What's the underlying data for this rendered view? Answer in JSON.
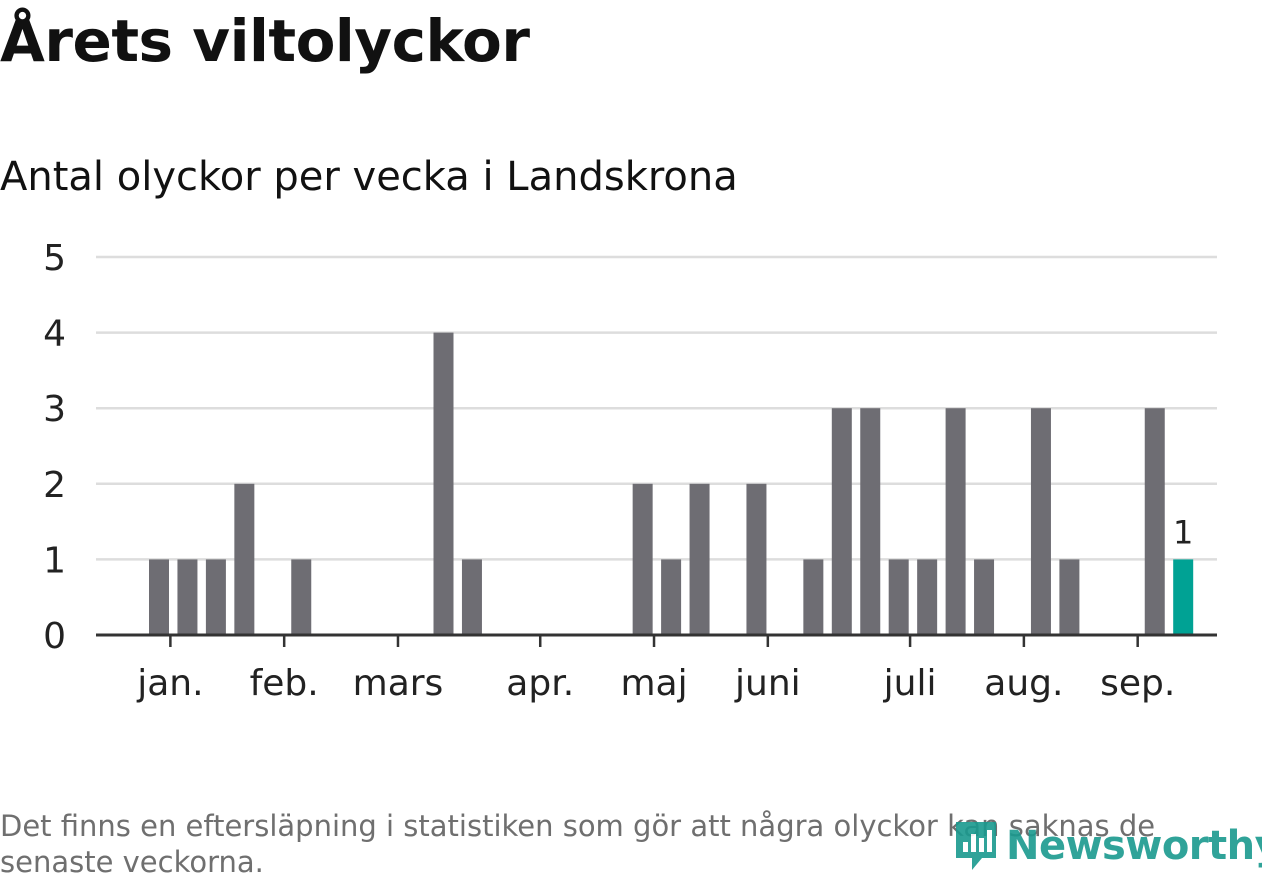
{
  "title": "Årets viltolyckor",
  "subtitle": "Antal olyckor per vecka i Landskrona",
  "footnote": "Det finns en eftersläpning i statistiken som gör att några olyckor kan saknas de senaste veckorna.",
  "logo_text": "Newsworthy",
  "colors": {
    "bar": "#6e6d73",
    "highlight": "#00a294",
    "grid": "#dddddd",
    "axis": "#333333",
    "text": "#222222",
    "logo": "#1a9a8f"
  },
  "chart_data": {
    "type": "bar",
    "title": "Antal olyckor per vecka i Landskrona",
    "xlabel": "",
    "ylabel": "",
    "x_unit": "week",
    "weeks": [
      1,
      2,
      3,
      4,
      5,
      6,
      7,
      8,
      9,
      10,
      11,
      12,
      13,
      14,
      15,
      16,
      17,
      18,
      19,
      20,
      21,
      22,
      23,
      24,
      25,
      26,
      27,
      28,
      29,
      30,
      31,
      32,
      33,
      34,
      35,
      36,
      37
    ],
    "values": [
      1,
      1,
      1,
      2,
      0,
      1,
      0,
      0,
      0,
      0,
      4,
      1,
      0,
      0,
      0,
      0,
      0,
      2,
      1,
      2,
      0,
      2,
      0,
      1,
      3,
      3,
      1,
      1,
      3,
      1,
      0,
      3,
      1,
      0,
      0,
      3,
      1
    ],
    "highlight_index": 36,
    "highlight_label": "1",
    "month_labels": [
      {
        "label": "jan.",
        "week": 1.4
      },
      {
        "label": "feb.",
        "week": 5.4
      },
      {
        "label": "mars",
        "week": 9.4
      },
      {
        "label": "apr.",
        "week": 14.4
      },
      {
        "label": "maj",
        "week": 18.4
      },
      {
        "label": "juni",
        "week": 22.4
      },
      {
        "label": "juli",
        "week": 27.4
      },
      {
        "label": "aug.",
        "week": 31.4
      },
      {
        "label": "sep.",
        "week": 35.4
      }
    ],
    "y_ticks": [
      "0",
      "1",
      "2",
      "3",
      "4",
      "5"
    ],
    "ylim": [
      0,
      5
    ],
    "grid": true,
    "legend": "none"
  }
}
